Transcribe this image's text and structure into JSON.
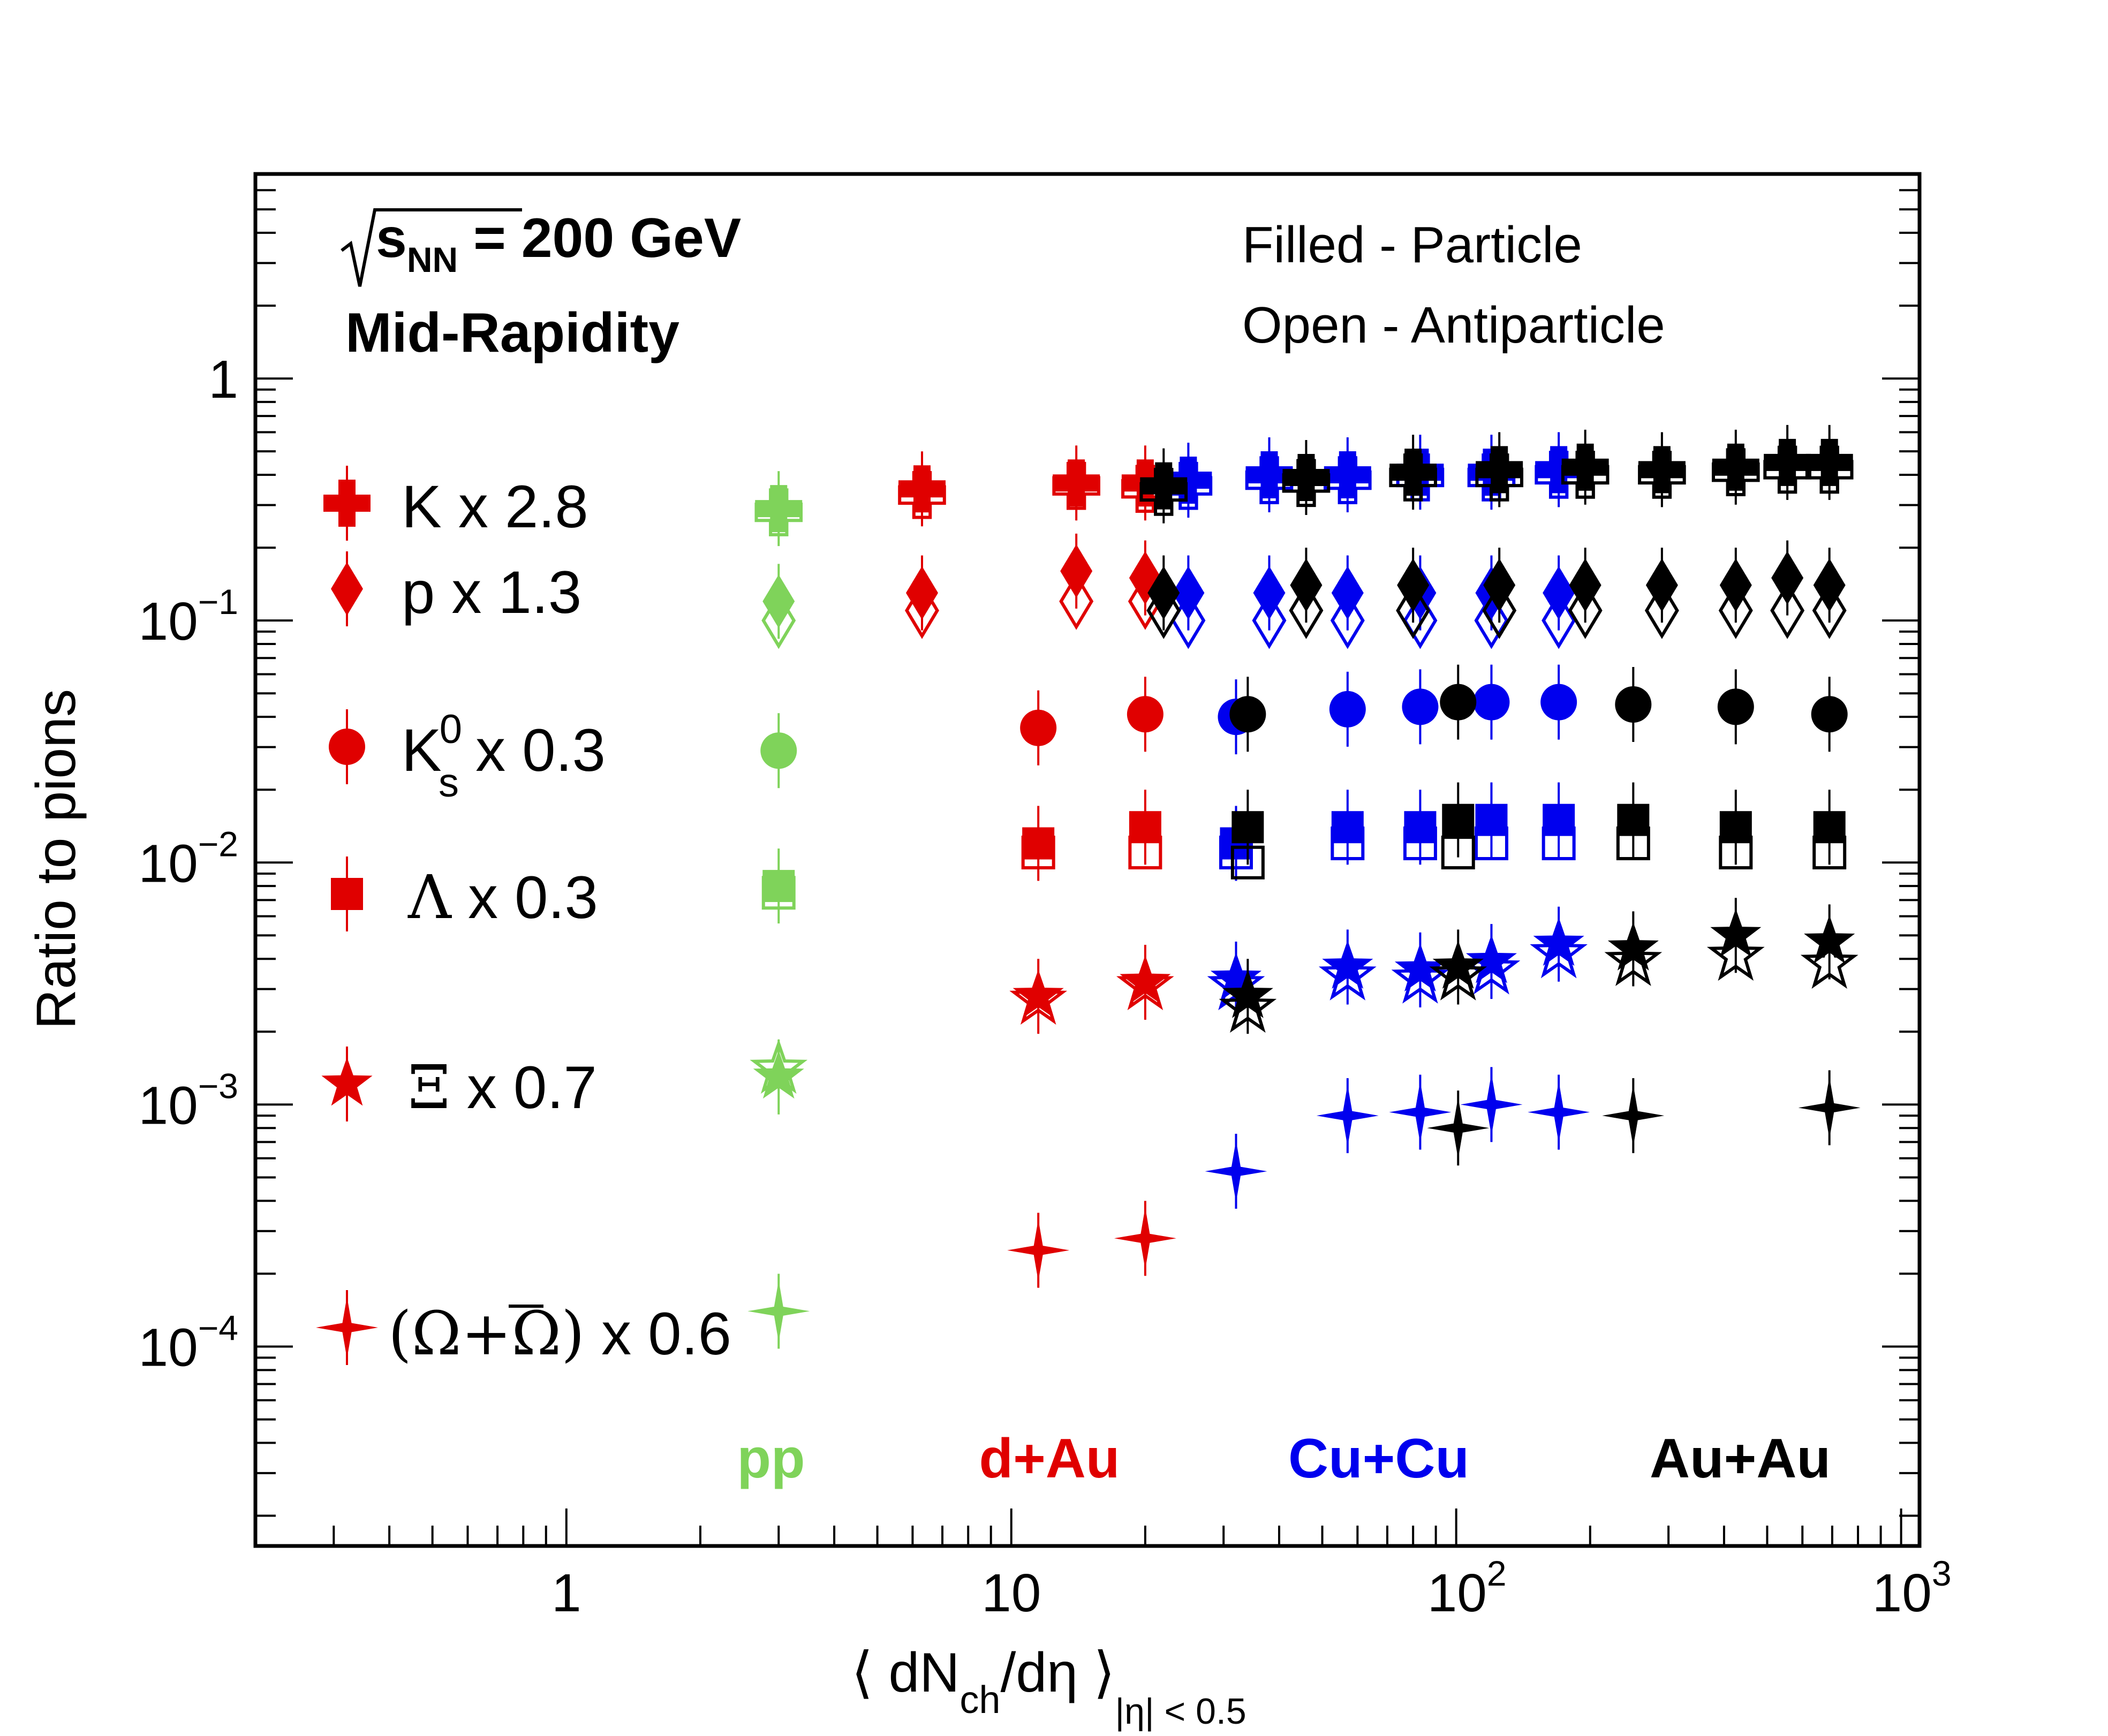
{
  "chart_data": {
    "type": "scatter",
    "title": "",
    "xlabel": "⟨ dN_ch/dη ⟩_|η| < 0.5",
    "xlabel_parts": {
      "open": "⟨ dN",
      "sub_ch": "ch",
      "mid": "/dη ⟩",
      "sub_eta": "|η| < 0.5"
    },
    "ylabel": "Ratio to pions",
    "xscale": "log",
    "yscale": "log",
    "xlim": [
      0.2,
      1100
    ],
    "ylim": [
      1.5e-05,
      7
    ],
    "x_ticks": [
      {
        "value": 1,
        "base": "1",
        "exp": ""
      },
      {
        "value": 10,
        "base": "10",
        "exp": ""
      },
      {
        "value": 100,
        "base": "10",
        "exp": "2"
      },
      {
        "value": 1000,
        "base": "10",
        "exp": "3"
      }
    ],
    "y_ticks": [
      {
        "value": 1,
        "base": "1",
        "exp": ""
      },
      {
        "value": 0.1,
        "base": "10",
        "exp": "−1"
      },
      {
        "value": 0.01,
        "base": "10",
        "exp": "−2"
      },
      {
        "value": 0.001,
        "base": "10",
        "exp": "−3"
      },
      {
        "value": 0.0001,
        "base": "10",
        "exp": "−4"
      }
    ],
    "energy_label": {
      "prefix": "s",
      "sub": "NN",
      "suffix": " = 200 GeV"
    },
    "rapidity_label": "Mid-Rapidity",
    "fill_legend": [
      "Filled - Particle",
      "Open - Antiparticle"
    ],
    "systems": [
      {
        "name": "pp",
        "color": "#7fd35a"
      },
      {
        "name": "d+Au",
        "color": "#e00000"
      },
      {
        "name": "Cu+Cu",
        "color": "#0000ee"
      },
      {
        "name": "Au+Au",
        "color": "#000000"
      }
    ],
    "legend": [
      {
        "label": "K x 2.8",
        "marker": "cross"
      },
      {
        "label": "p x 1.3",
        "marker": "diamond"
      },
      {
        "label_main": "K",
        "label_sup": "0",
        "label_sub": "s",
        "label_rest": " x 0.3",
        "marker": "circle"
      },
      {
        "label_main": "Λ",
        "label_rest": " x 0.3",
        "marker": "square"
      },
      {
        "label_main": "Ξ",
        "label_rest": " x 0.7",
        "marker": "star"
      },
      {
        "label_main": "(Ω+Ω)",
        "label_rest": " x 0.6",
        "marker": "star4"
      }
    ],
    "series": [
      {
        "particle": "K",
        "marker": "cross",
        "pp": {
          "x": [
            3.0
          ],
          "filled": [
            0.29
          ],
          "open": [
            0.28
          ]
        },
        "dAu": {
          "x": [
            6.3,
            14.0,
            20.0
          ],
          "filled": [
            0.35,
            0.37,
            0.37
          ],
          "open": [
            0.33,
            0.36,
            0.35
          ]
        },
        "CuCu": {
          "x": [
            25,
            38,
            57,
            83,
            120,
            170
          ],
          "filled": [
            0.38,
            0.4,
            0.4,
            0.41,
            0.41,
            0.42
          ],
          "open": [
            0.36,
            0.38,
            0.38,
            0.39,
            0.39,
            0.4
          ]
        },
        "AuAu": {
          "x": [
            22,
            46,
            80,
            125,
            195,
            290,
            425,
            555,
            690
          ],
          "filled": [
            0.36,
            0.39,
            0.41,
            0.42,
            0.43,
            0.42,
            0.43,
            0.45,
            0.45
          ],
          "open": [
            0.34,
            0.37,
            0.39,
            0.39,
            0.4,
            0.4,
            0.41,
            0.42,
            0.42
          ]
        }
      },
      {
        "particle": "p",
        "marker": "diamond",
        "pp": {
          "x": [
            3.0
          ],
          "filled": [
            0.12
          ],
          "open": [
            0.1
          ]
        },
        "dAu": {
          "x": [
            6.3,
            14.0,
            20.0
          ],
          "filled": [
            0.13,
            0.16,
            0.15
          ],
          "open": [
            0.11,
            0.12,
            0.12
          ]
        },
        "CuCu": {
          "x": [
            25,
            38,
            57,
            83,
            120,
            170
          ],
          "filled": [
            0.13,
            0.13,
            0.13,
            0.13,
            0.13,
            0.13
          ],
          "open": [
            0.1,
            0.1,
            0.1,
            0.1,
            0.1,
            0.1
          ]
        },
        "AuAu": {
          "x": [
            22,
            46,
            80,
            125,
            195,
            290,
            425,
            555,
            690
          ],
          "filled": [
            0.13,
            0.14,
            0.14,
            0.14,
            0.14,
            0.14,
            0.14,
            0.15,
            0.14
          ],
          "open": [
            0.11,
            0.11,
            0.11,
            0.11,
            0.11,
            0.11,
            0.11,
            0.11,
            0.11
          ]
        }
      },
      {
        "particle": "Ks0",
        "marker": "circle",
        "pp": {
          "x": [
            3.0
          ],
          "filled": [
            0.029
          ],
          "open": []
        },
        "dAu": {
          "x": [
            11.5,
            20.0
          ],
          "filled": [
            0.036,
            0.041
          ],
          "open": []
        },
        "CuCu": {
          "x": [
            32,
            57,
            83,
            120,
            170
          ],
          "filled": [
            0.04,
            0.043,
            0.044,
            0.046,
            0.046
          ],
          "open": []
        },
        "AuAu": {
          "x": [
            34,
            101,
            250,
            425,
            690
          ],
          "filled": [
            0.041,
            0.046,
            0.045,
            0.044,
            0.041
          ],
          "open": []
        }
      },
      {
        "particle": "Lambda",
        "marker": "square",
        "pp": {
          "x": [
            3.0
          ],
          "filled": [
            0.008
          ],
          "open": [
            0.0075
          ]
        },
        "dAu": {
          "x": [
            11.5,
            20.0
          ],
          "filled": [
            0.012,
            0.014
          ],
          "open": [
            0.011,
            0.011
          ]
        },
        "CuCu": {
          "x": [
            32,
            57,
            83,
            120,
            170
          ],
          "filled": [
            0.012,
            0.014,
            0.014,
            0.015,
            0.015
          ],
          "open": [
            0.011,
            0.012,
            0.012,
            0.012,
            0.012
          ]
        },
        "AuAu": {
          "x": [
            34,
            101,
            250,
            425,
            690
          ],
          "filled": [
            0.014,
            0.015,
            0.015,
            0.014,
            0.014
          ],
          "open": [
            0.01,
            0.011,
            0.012,
            0.011,
            0.011
          ]
        }
      },
      {
        "particle": "Xi",
        "marker": "star",
        "pp": {
          "x": [
            3.0
          ],
          "filled": [
            0.0013
          ],
          "open": [
            0.0014
          ]
        },
        "dAu": {
          "x": [
            11.5,
            20.0
          ],
          "filled": [
            0.0028,
            0.0032
          ],
          "open": [
            0.0027,
            0.0031
          ]
        },
        "CuCu": {
          "x": [
            32,
            57,
            83,
            120,
            170
          ],
          "filled": [
            0.0033,
            0.0037,
            0.0036,
            0.0039,
            0.0046
          ],
          "open": [
            0.0031,
            0.0034,
            0.0033,
            0.0036,
            0.0042
          ]
        },
        "AuAu": {
          "x": [
            34,
            101,
            250,
            425,
            690
          ],
          "filled": [
            0.0028,
            0.0037,
            0.0044,
            0.005,
            0.0047
          ],
          "open": [
            0.0025,
            0.0034,
            0.0039,
            0.0041,
            0.0038
          ]
        }
      },
      {
        "particle": "Omega",
        "marker": "star4",
        "pp": {
          "x": [
            3.0
          ],
          "filled": [
            0.00014
          ],
          "open": []
        },
        "dAu": {
          "x": [
            11.5,
            20.0
          ],
          "filled": [
            0.00025,
            0.00028
          ],
          "open": []
        },
        "CuCu": {
          "x": [
            32,
            57,
            83,
            120,
            170
          ],
          "filled": [
            0.00053,
            0.0009,
            0.00093,
            0.001,
            0.00093
          ],
          "open": []
        },
        "AuAu": {
          "x": [
            101,
            250,
            690
          ],
          "filled": [
            0.0008,
            0.0009,
            0.00097
          ],
          "open": []
        }
      }
    ]
  }
}
